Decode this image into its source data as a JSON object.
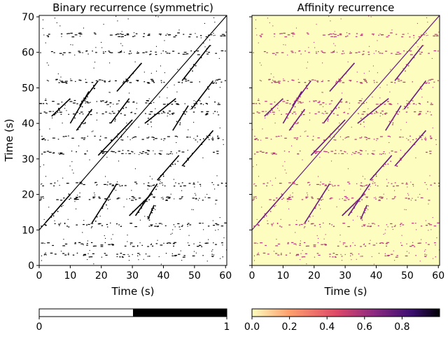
{
  "chart_data": [
    {
      "type": "heatmap",
      "title": "Binary recurrence (symmetric)",
      "xlabel": "Time (s)",
      "ylabel": "Time (s)",
      "xlim": [
        0,
        60.4
      ],
      "ylim": [
        0,
        70.4
      ],
      "xticks": [
        "0",
        "10",
        "20",
        "30",
        "40",
        "50",
        "60"
      ],
      "yticks": [
        "0",
        "10",
        "20",
        "30",
        "40",
        "50",
        "60",
        "70"
      ],
      "colorbar": {
        "ticks": [
          "0",
          "1"
        ],
        "min": 0,
        "max": 1,
        "colors": [
          "#ffffff",
          "#000000"
        ]
      },
      "background": "#ffffff",
      "mark_color": "#000000",
      "main_diagonal": {
        "x": [
          0,
          60.4
        ],
        "y": [
          10,
          70.4
        ]
      },
      "segments": [
        {
          "x0": 2,
          "y0": 12,
          "x1": 10,
          "y1": 20
        },
        {
          "x0": 10,
          "y0": 40,
          "x1": 16,
          "y1": 49
        },
        {
          "x0": 4,
          "y0": 42,
          "x1": 10,
          "y1": 47
        },
        {
          "x0": 12,
          "y0": 38,
          "x1": 17,
          "y1": 44
        },
        {
          "x0": 17,
          "y0": 12,
          "x1": 25,
          "y1": 23
        },
        {
          "x0": 19,
          "y0": 31,
          "x1": 30,
          "y1": 41
        },
        {
          "x0": 29,
          "y0": 14,
          "x1": 36,
          "y1": 20
        },
        {
          "x0": 31,
          "y0": 14,
          "x1": 38,
          "y1": 23
        },
        {
          "x0": 35,
          "y0": 13,
          "x1": 37,
          "y1": 17
        },
        {
          "x0": 34,
          "y0": 40,
          "x1": 44,
          "y1": 47
        },
        {
          "x0": 43,
          "y0": 38,
          "x1": 48,
          "y1": 45
        },
        {
          "x0": 46,
          "y0": 52,
          "x1": 55,
          "y1": 62
        },
        {
          "x0": 13,
          "y0": 45,
          "x1": 19,
          "y1": 52
        },
        {
          "x0": 23,
          "y0": 40,
          "x1": 29,
          "y1": 47
        },
        {
          "x0": 38,
          "y0": 24,
          "x1": 45,
          "y1": 31
        },
        {
          "x0": 46,
          "y0": 28,
          "x1": 56,
          "y1": 38
        },
        {
          "x0": 25,
          "y0": 49,
          "x1": 33,
          "y1": 57
        },
        {
          "x0": 49,
          "y0": 44,
          "x1": 56,
          "y1": 52
        }
      ],
      "bands_y": [
        3,
        6,
        11.5,
        19,
        23,
        32,
        36,
        43,
        46,
        52,
        60,
        65
      ]
    },
    {
      "type": "heatmap",
      "title": "Affinity recurrence",
      "xlabel": "Time (s)",
      "ylabel": "",
      "xlim": [
        0,
        60.4
      ],
      "ylim": [
        0,
        70.4
      ],
      "xticks": [
        "0",
        "10",
        "20",
        "30",
        "40",
        "50",
        "60"
      ],
      "colorbar": {
        "ticks": [
          "0.0",
          "0.2",
          "0.4",
          "0.6",
          "0.8"
        ],
        "min": 0,
        "max": 1,
        "colormap": "magma_r",
        "colors": [
          "#fcfdbf",
          "#fe9f6d",
          "#de4968",
          "#8c2981",
          "#3b0f70",
          "#000004"
        ]
      },
      "background": "#fcfdbf",
      "mark_color": "#b73779",
      "strong_color": "#6a1c80",
      "main_diagonal": {
        "x": [
          0,
          60.4
        ],
        "y": [
          10,
          70.4
        ]
      },
      "segments_same_as_left": true
    }
  ]
}
